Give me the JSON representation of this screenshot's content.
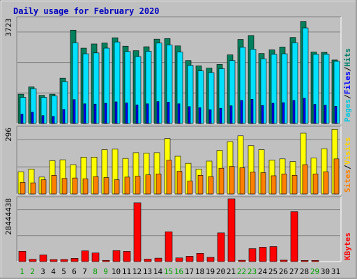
{
  "chart_data": {
    "type": "bar",
    "title": "Daily usage for February 2020",
    "days": [
      "1",
      "2",
      "3",
      "4",
      "5",
      "6",
      "7",
      "8",
      "9",
      "10",
      "11",
      "12",
      "13",
      "14",
      "15",
      "16",
      "17",
      "18",
      "19",
      "20",
      "21",
      "22",
      "23",
      "24",
      "25",
      "26",
      "27",
      "28",
      "29",
      "30",
      "31"
    ],
    "weekend_days": [
      "1",
      "2",
      "8",
      "9",
      "15",
      "16",
      "22",
      "23",
      "29"
    ],
    "panels": [
      {
        "name": "hits-files-pages",
        "ymax_label": "3723",
        "ymax": 3723,
        "axis_labels": [
          {
            "text": "Pages",
            "color": "#00c8e0"
          },
          {
            "text": "Files",
            "color": "#0000ff"
          },
          {
            "text": "Hits",
            "color": "#00806a"
          }
        ],
        "series": [
          {
            "name": "Hits",
            "color": "#00805c",
            "values": [
              1040,
              1300,
              1000,
              1040,
              1610,
              3320,
              2680,
              2830,
              2860,
              3050,
              2750,
              2590,
              2730,
              3000,
              3020,
              2760,
              2240,
              2050,
              1970,
              2100,
              2440,
              2990,
              3130,
              2490,
              2620,
              2720,
              3060,
              3630,
              2540,
              2530,
              2260
            ]
          },
          {
            "name": "Pages",
            "color": "#00e0ff",
            "values": [
              930,
              1240,
              930,
              980,
              1490,
              2870,
              2480,
              2510,
              2680,
              2900,
              2560,
              2380,
              2570,
              2860,
              2790,
              2540,
              2070,
              1870,
              1810,
              1950,
              2240,
              2710,
              2640,
              2300,
              2460,
              2480,
              2870,
              3400,
              2460,
              2460,
              2210
            ]
          },
          {
            "name": "Files",
            "color": "#0000ff",
            "values": [
              330,
              400,
              280,
              250,
              500,
              850,
              700,
              690,
              720,
              770,
              730,
              660,
              700,
              780,
              760,
              700,
              600,
              560,
              490,
              540,
              630,
              820,
              860,
              640,
              720,
              740,
              820,
              900,
              680,
              650,
              610
            ]
          }
        ]
      },
      {
        "name": "visits-sites",
        "ymax_label": "296",
        "ymax": 296,
        "axis_labels": [
          {
            "text": "Sites",
            "color": "#ff8000"
          },
          {
            "text": "Visits",
            "color": "#ffd000"
          }
        ],
        "series": [
          {
            "name": "Visits",
            "color": "#ffff00",
            "values": [
              100,
              112,
              76,
              150,
              154,
              132,
              166,
              166,
              200,
              202,
              160,
              186,
              184,
              186,
              250,
              170,
              138,
              112,
              148,
              196,
              236,
              262,
              218,
              200,
              152,
              158,
              146,
              274,
              162,
              204,
              292
            ]
          },
          {
            "name": "Sites",
            "color": "#ff8000",
            "values": [
              52,
              50,
              64,
              84,
              70,
              72,
              68,
              78,
              74,
              64,
              76,
              80,
              86,
              90,
              152,
              102,
              58,
              84,
              78,
              116,
              124,
              118,
              98,
              96,
              82,
              90,
              84,
              132,
              90,
              100,
              158
            ]
          }
        ]
      },
      {
        "name": "kbytes",
        "ymax_label": "28444438",
        "ymax": 28444438,
        "axis_labels": [
          {
            "text": "KBytes",
            "color": "#ff0000"
          }
        ],
        "series": [
          {
            "name": "KBytes",
            "color": "#ff0000",
            "values": [
              4650000,
              1000000,
              3000000,
              900000,
              950000,
              1450000,
              4850000,
              3900000,
              550000,
              4950000,
              4600000,
              26600000,
              1100000,
              1550000,
              13500000,
              1650000,
              2400000,
              3700000,
              1900000,
              13000000,
              28444438,
              600000,
              5850000,
              6500000,
              6800000,
              650000,
              22600000,
              500000,
              500000,
              0,
              0
            ]
          }
        ]
      }
    ]
  }
}
